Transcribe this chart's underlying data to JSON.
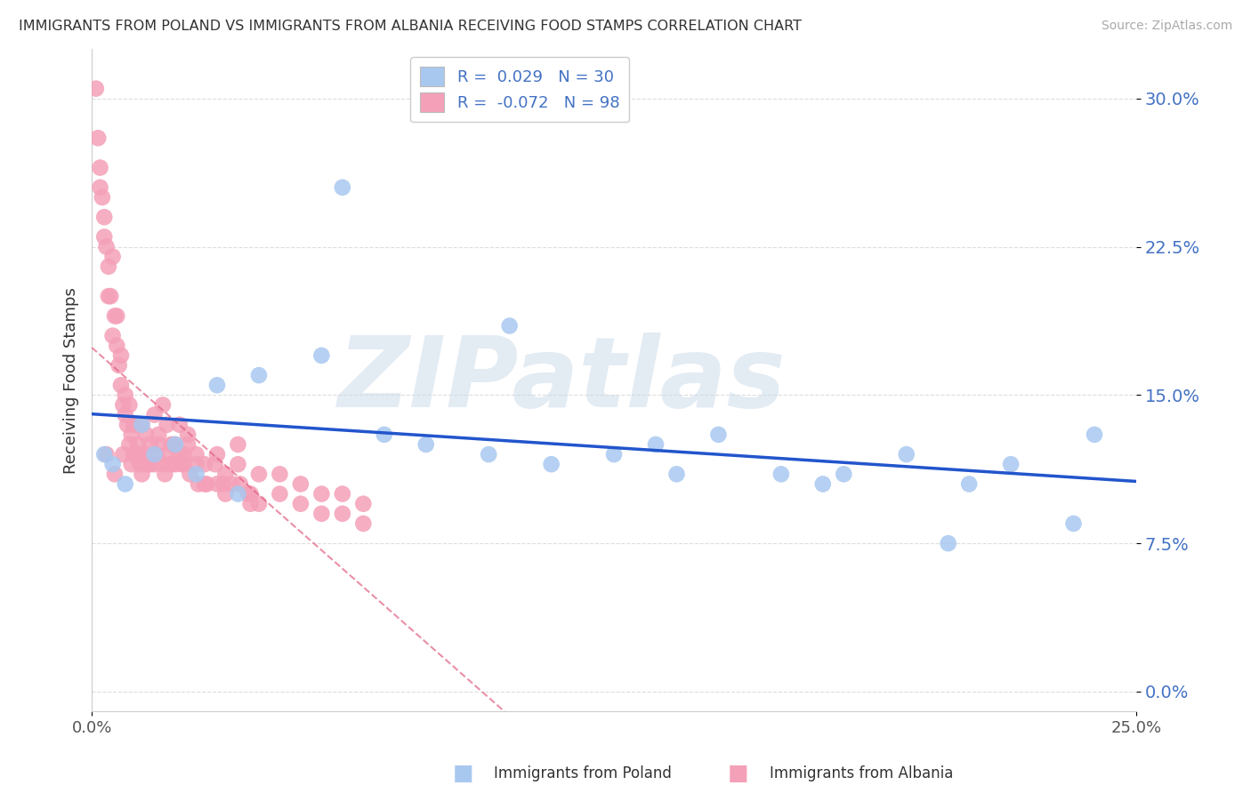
{
  "title": "IMMIGRANTS FROM POLAND VS IMMIGRANTS FROM ALBANIA RECEIVING FOOD STAMPS CORRELATION CHART",
  "source": "Source: ZipAtlas.com",
  "ylabel": "Receiving Food Stamps",
  "xlim": [
    0.0,
    25.0
  ],
  "ylim": [
    -1.0,
    32.5
  ],
  "yticks": [
    0.0,
    7.5,
    15.0,
    22.5,
    30.0
  ],
  "ytick_labels": [
    "0.0%",
    "7.5%",
    "15.0%",
    "22.5%",
    "30.0%"
  ],
  "xtick_left": "0.0%",
  "xtick_right": "25.0%",
  "legend_poland_r": "0.029",
  "legend_poland_n": "30",
  "legend_albania_r": "-0.072",
  "legend_albania_n": "98",
  "color_poland": "#a8c8f0",
  "color_albania": "#f4a0b8",
  "color_line_poland": "#2255cc",
  "color_line_albania": "#e06080",
  "watermark": "ZIPatlas",
  "watermark_color": "#c8d8e8",
  "poland_x": [
    0.3,
    0.5,
    0.8,
    1.2,
    1.5,
    2.0,
    2.5,
    3.0,
    4.0,
    5.5,
    7.0,
    8.0,
    9.5,
    11.0,
    12.5,
    13.5,
    15.0,
    16.5,
    18.0,
    19.5,
    21.0,
    22.0,
    23.5,
    24.0,
    6.0,
    3.5,
    10.0,
    14.0,
    17.5,
    20.5
  ],
  "poland_y": [
    12.0,
    11.5,
    10.5,
    13.5,
    12.0,
    12.5,
    11.0,
    15.5,
    16.0,
    17.0,
    13.0,
    12.5,
    12.0,
    11.5,
    12.0,
    12.5,
    13.0,
    11.0,
    11.0,
    12.0,
    10.5,
    11.5,
    8.5,
    13.0,
    25.5,
    10.0,
    18.5,
    11.0,
    10.5,
    7.5
  ],
  "albania_x": [
    0.1,
    0.15,
    0.2,
    0.25,
    0.3,
    0.35,
    0.4,
    0.45,
    0.5,
    0.55,
    0.6,
    0.65,
    0.7,
    0.75,
    0.8,
    0.85,
    0.9,
    0.95,
    1.0,
    1.05,
    1.1,
    1.15,
    1.2,
    1.3,
    1.4,
    1.5,
    1.6,
    1.7,
    1.8,
    1.9,
    2.0,
    2.1,
    2.2,
    2.3,
    2.5,
    2.7,
    3.0,
    3.2,
    3.5,
    3.8,
    4.0,
    4.5,
    5.0,
    5.5,
    6.0,
    6.5,
    0.2,
    0.3,
    0.4,
    0.5,
    0.6,
    0.7,
    0.8,
    0.9,
    1.0,
    1.1,
    1.2,
    1.3,
    1.4,
    1.5,
    1.6,
    1.7,
    1.8,
    1.9,
    2.0,
    2.1,
    2.2,
    2.3,
    2.5,
    2.7,
    3.0,
    3.2,
    3.5,
    3.8,
    4.0,
    4.5,
    5.0,
    5.5,
    6.0,
    6.5,
    0.35,
    0.55,
    0.75,
    0.95,
    1.15,
    1.35,
    1.55,
    1.75,
    1.95,
    2.15,
    2.35,
    2.55,
    2.75,
    2.95,
    3.15,
    3.35,
    3.55,
    3.75
  ],
  "albania_y": [
    30.5,
    28.0,
    26.5,
    25.0,
    24.0,
    22.5,
    21.5,
    20.0,
    22.0,
    19.0,
    17.5,
    16.5,
    15.5,
    14.5,
    14.0,
    13.5,
    12.5,
    13.0,
    12.0,
    13.5,
    12.5,
    11.5,
    11.0,
    13.0,
    12.5,
    11.5,
    13.0,
    14.5,
    12.0,
    11.5,
    12.5,
    13.5,
    12.0,
    13.0,
    12.0,
    11.5,
    12.0,
    11.0,
    12.5,
    10.0,
    11.0,
    11.0,
    10.5,
    10.0,
    10.0,
    9.5,
    25.5,
    23.0,
    20.0,
    18.0,
    19.0,
    17.0,
    15.0,
    14.5,
    13.5,
    12.0,
    13.5,
    12.0,
    11.5,
    14.0,
    12.5,
    11.5,
    13.5,
    12.5,
    11.5,
    12.0,
    11.5,
    12.5,
    11.5,
    10.5,
    10.5,
    10.0,
    11.5,
    9.5,
    9.5,
    10.0,
    9.5,
    9.0,
    9.0,
    8.5,
    12.0,
    11.0,
    12.0,
    11.5,
    12.0,
    11.5,
    12.0,
    11.0,
    12.5,
    11.5,
    11.0,
    10.5,
    10.5,
    11.5,
    10.5,
    10.5,
    10.5,
    10.0
  ]
}
